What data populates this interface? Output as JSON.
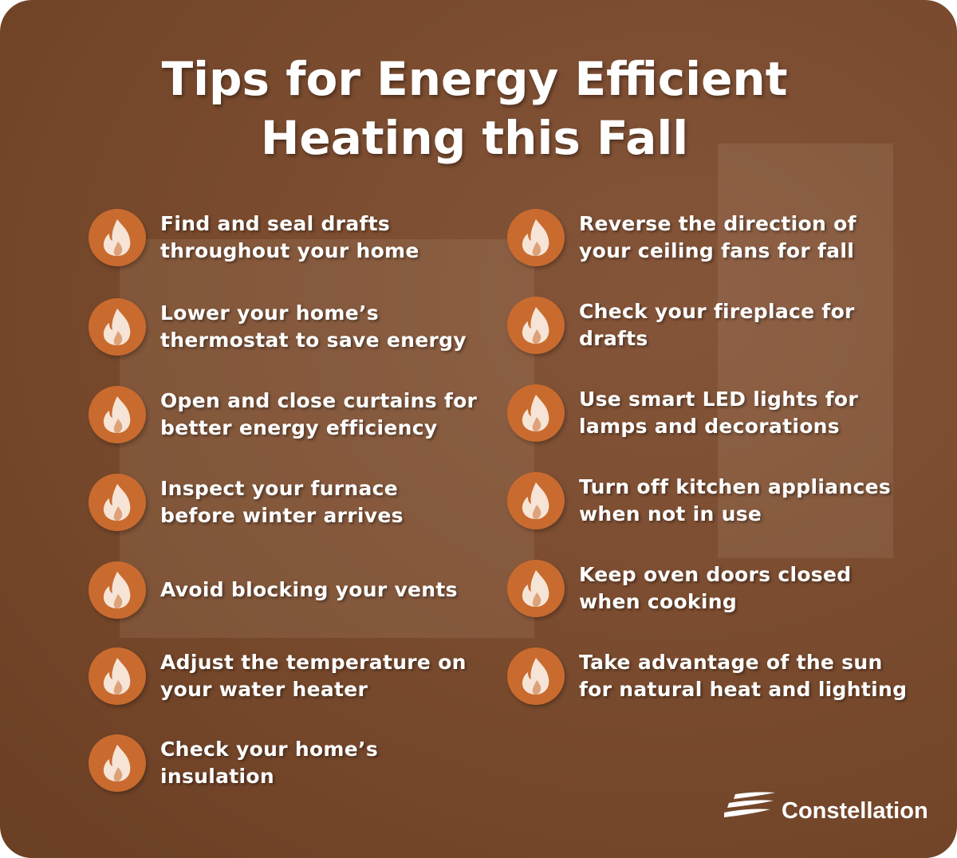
{
  "title_lines": [
    "Tips for Energy Efficient",
    "Heating this Fall"
  ],
  "icon": "flame-icon",
  "colors": {
    "background": "#7a4b2e",
    "icon_circle": "#c96b2f",
    "flame": "#f6e4d6",
    "text": "#ffffff"
  },
  "left_tips": [
    "Find and seal drafts\nthroughout your home",
    "Lower your home’s\nthermostat to save energy",
    "Open and close curtains for\nbetter energy efficiency",
    "Inspect your furnace\nbefore winter arrives",
    "Avoid blocking your vents",
    "Adjust the temperature on\nyour water heater",
    "Check your home’s\ninsulation"
  ],
  "right_tips": [
    "Reverse the direction of\nyour ceiling fans for fall",
    "Check your fireplace for\ndrafts",
    "Use smart LED lights for\nlamps and decorations",
    "Turn off kitchen appliances\nwhen not in use",
    "Keep oven doors closed\nwhen cooking",
    "Take advantage of the sun\nfor natural heat and lighting"
  ],
  "brand": "Constellation"
}
